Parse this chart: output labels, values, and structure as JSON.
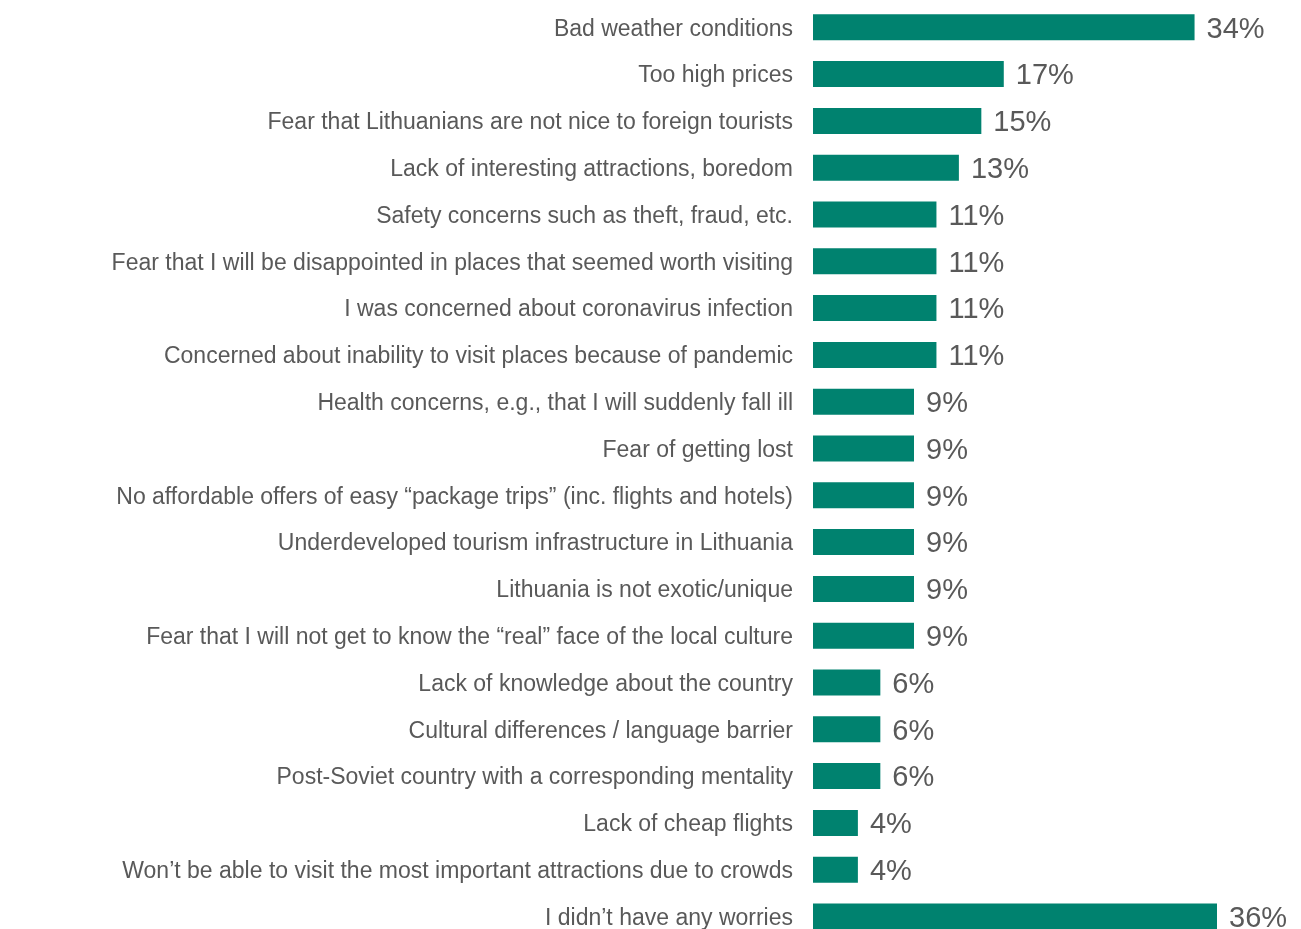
{
  "chart_data": {
    "type": "bar",
    "orientation": "horizontal",
    "color": "#00826f",
    "categories": [
      "Bad weather conditions",
      "Too high prices",
      "Fear that Lithuanians are not nice to foreign tourists",
      "Lack of interesting attractions, boredom",
      "Safety concerns such as theft, fraud, etc.",
      "Fear that I will be disappointed in places that seemed worth visiting",
      "I was concerned about coronavirus infection",
      "Concerned about inability to visit places because of pandemic",
      "Health concerns, e.g., that I will suddenly fall ill",
      "Fear of getting lost",
      "No affordable offers of easy “package trips” (inc. flights and hotels)",
      "Underdeveloped tourism infrastructure in Lithuania",
      "Lithuania is not exotic/unique",
      "Fear that I will not get to know the “real” face of the local culture",
      "Lack of knowledge about the country",
      "Cultural differences / language barrier",
      "Post-Soviet country with a corresponding mentality",
      "Lack of cheap flights",
      "Won’t be able to visit the most important attractions due to crowds",
      "I didn’t have any worries"
    ],
    "values": [
      34,
      17,
      15,
      13,
      11,
      11,
      11,
      11,
      9,
      9,
      9,
      9,
      9,
      9,
      6,
      6,
      6,
      4,
      4,
      36
    ],
    "value_labels": [
      "34%",
      "17%",
      "15%",
      "13%",
      "11%",
      "11%",
      "11%",
      "11%",
      "9%",
      "9%",
      "9%",
      "9%",
      "9%",
      "9%",
      "6%",
      "6%",
      "6%",
      "4%",
      "4%",
      "36%"
    ]
  }
}
